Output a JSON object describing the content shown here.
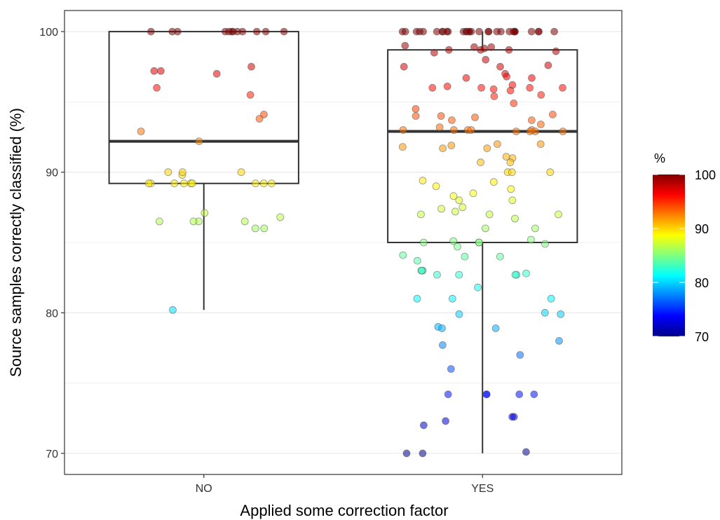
{
  "chart_data": {
    "type": "boxplot",
    "xlabel": "Applied some correction factor",
    "ylabel": "Source samples correctly classified (%)",
    "categories": [
      "NO",
      "YES"
    ],
    "ylim": [
      68.5,
      101.5
    ],
    "yticks": [
      70,
      80,
      90,
      100
    ],
    "ytick_labels": [
      "70",
      "80",
      "90",
      "100"
    ],
    "grid": true,
    "boxes": [
      {
        "category": "NO",
        "whisker_low": 80.2,
        "q1": 89.2,
        "median": 92.2,
        "q3": 100,
        "whisker_high": 100
      },
      {
        "category": "YES",
        "whisker_low": 70,
        "q1": 85.0,
        "median": 92.9,
        "q3": 98.7,
        "whisker_high": 100
      }
    ],
    "points": {
      "NO": [
        100,
        100,
        100,
        100,
        100,
        100,
        100,
        100,
        100,
        100,
        100,
        100,
        97.5,
        97.2,
        97.0,
        97.2,
        96.0,
        95.5,
        94.1,
        93.8,
        92.9,
        92.2,
        90.0,
        89.8,
        90.0,
        90.0,
        89.2,
        89.2,
        89.2,
        89.2,
        89.2,
        89.2,
        89.2,
        89.2,
        89.2,
        87.1,
        86.8,
        86.5,
        86.5,
        86.5,
        86.5,
        86.0,
        86.0,
        80.2
      ],
      "YES": [
        100,
        100,
        100,
        100,
        100,
        100,
        100,
        100,
        100,
        100,
        100,
        100,
        100,
        100,
        100,
        100,
        100,
        100,
        100,
        100,
        100,
        100,
        100,
        100,
        100,
        100,
        100,
        100,
        100,
        100,
        99.0,
        98.9,
        98.9,
        98.8,
        98.7,
        98.7,
        98.7,
        98.6,
        98.5,
        98.0,
        97.6,
        97.5,
        97.5,
        97.0,
        96.8,
        96.7,
        96.7,
        96.2,
        96.1,
        96.0,
        96.0,
        96.0,
        96.0,
        95.9,
        95.8,
        95.5,
        95.4,
        94.9,
        94.5,
        94.1,
        94.0,
        94.0,
        93.9,
        93.7,
        93.7,
        93.4,
        93.2,
        93.0,
        93.0,
        93.0,
        93.0,
        93.0,
        92.9,
        92.9,
        92.9,
        92.9,
        92.0,
        92.0,
        91.9,
        91.8,
        91.7,
        91.7,
        91.1,
        91.0,
        90.7,
        90.7,
        90.0,
        90.0,
        90.0,
        89.4,
        89.3,
        89.0,
        88.8,
        88.5,
        88.3,
        88.0,
        88.0,
        87.5,
        87.4,
        87.2,
        87.0,
        87.0,
        87.0,
        86.7,
        86.0,
        86.0,
        85.2,
        85.1,
        85.0,
        85.0,
        85.0,
        84.9,
        84.7,
        84.1,
        84.0,
        84.0,
        83.7,
        83.0,
        83.0,
        83.0,
        82.8,
        82.7,
        82.7,
        82.7,
        82.7,
        81.8,
        81.0,
        81.0,
        81.0,
        80.0,
        79.9,
        79.9,
        79.0,
        78.9,
        78.9,
        78.0,
        77.7,
        77.0,
        76.0,
        74.2,
        74.2,
        74.2,
        74.2,
        74.2,
        72.6,
        72.6,
        72.3,
        72.0,
        70.1,
        70.0,
        70.0
      ]
    },
    "legend": {
      "title": "%",
      "position": "right",
      "min": 70,
      "max": 100,
      "ticks": [
        70,
        80,
        90,
        100
      ],
      "tick_labels": [
        "70",
        "80",
        "90",
        "100"
      ],
      "colors": [
        "#00008b",
        "#0000ff",
        "#0080ff",
        "#00ffff",
        "#80ff80",
        "#ffff00",
        "#ff8000",
        "#ff0000",
        "#800000"
      ]
    }
  },
  "colors": {
    "box_stroke": "#333333",
    "grid": "#ebebeb",
    "panel_border": "#333333",
    "point_stroke": "#555555"
  }
}
